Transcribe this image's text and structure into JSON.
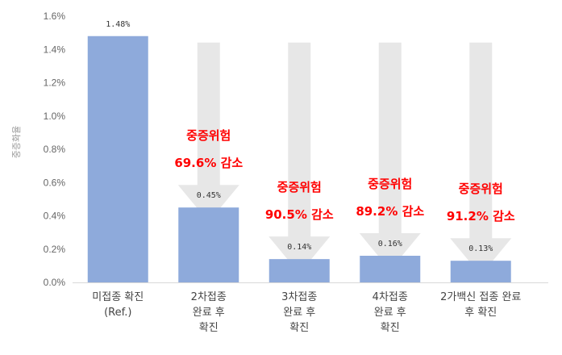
{
  "chart_data": {
    "type": "bar",
    "ylabel": "중증화율",
    "ylim": [
      0,
      1.6
    ],
    "y_ticks": [
      "0.0%",
      "0.2%",
      "0.4%",
      "0.6%",
      "0.8%",
      "1.0%",
      "1.2%",
      "1.4%",
      "1.6%"
    ],
    "categories": [
      [
        "미접종 확진",
        "(Ref.)"
      ],
      [
        "2차접종",
        "완료 후",
        "확진"
      ],
      [
        "3차접종",
        "완료 후",
        "확진"
      ],
      [
        "4차접종",
        "완료 후",
        "확진"
      ],
      [
        "2가백신 접종 완료",
        "후 확진"
      ]
    ],
    "values": [
      1.48,
      0.45,
      0.14,
      0.16,
      0.13
    ],
    "data_labels": [
      "1.48%",
      "0.45%",
      "0.14%",
      "0.16%",
      "0.13%"
    ],
    "annotations": [
      null,
      {
        "line1": "중증위험",
        "line2": "69.6% 감소"
      },
      {
        "line1": "중증위험",
        "line2": "90.5% 감소"
      },
      {
        "line1": "중증위험",
        "line2": "89.2% 감소"
      },
      {
        "line1": "중증위험",
        "line2": "91.2% 감소"
      }
    ],
    "grid": false,
    "legend": "none",
    "colors": {
      "bar": "#8eaadb",
      "arrow": "#e7e7e7",
      "annotation": "#ff0000",
      "axis": "#d9d9d9"
    }
  }
}
